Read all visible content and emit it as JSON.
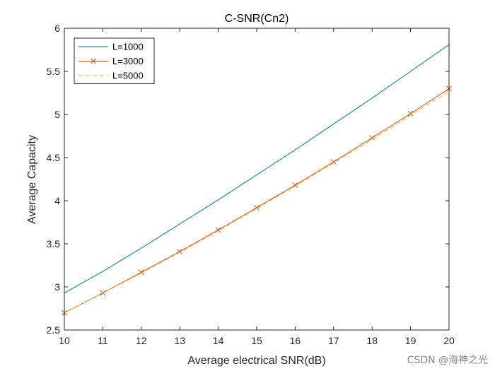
{
  "chart_data": {
    "type": "line",
    "title": "C-SNR(Cn2)",
    "xlabel": "Average electrical SNR(dB)",
    "ylabel": "Average Capacity",
    "xlim": [
      10,
      20
    ],
    "ylim": [
      2.5,
      6
    ],
    "xticks": [
      "10",
      "11",
      "12",
      "13",
      "14",
      "15",
      "16",
      "17",
      "18",
      "19",
      "20"
    ],
    "yticks": [
      "2.5",
      "3",
      "3.5",
      "4",
      "4.5",
      "5",
      "5.5",
      "6"
    ],
    "grid": false,
    "legend_position": "top-left",
    "x": [
      10,
      11,
      12,
      13,
      14,
      15,
      16,
      17,
      18,
      19,
      20
    ],
    "series": [
      {
        "name": "L=1000",
        "color": "#0072bd",
        "style": "solid",
        "marker": "none",
        "values": [
          2.93,
          3.18,
          3.45,
          3.73,
          4.01,
          4.3,
          4.59,
          4.89,
          5.19,
          5.5,
          5.81
        ]
      },
      {
        "name": "L=3000",
        "color": "#d95319",
        "style": "solid",
        "marker": "x",
        "values": [
          2.7,
          2.93,
          3.17,
          3.41,
          3.66,
          3.92,
          4.18,
          4.45,
          4.73,
          5.01,
          5.3
        ]
      },
      {
        "name": "L=5000",
        "color": "#edb120",
        "style": "dashed",
        "marker": "none",
        "values": [
          2.7,
          2.93,
          3.16,
          3.4,
          3.65,
          3.91,
          4.17,
          4.44,
          4.71,
          4.99,
          5.27
        ]
      }
    ]
  },
  "watermark": "CSDN @海神之光"
}
